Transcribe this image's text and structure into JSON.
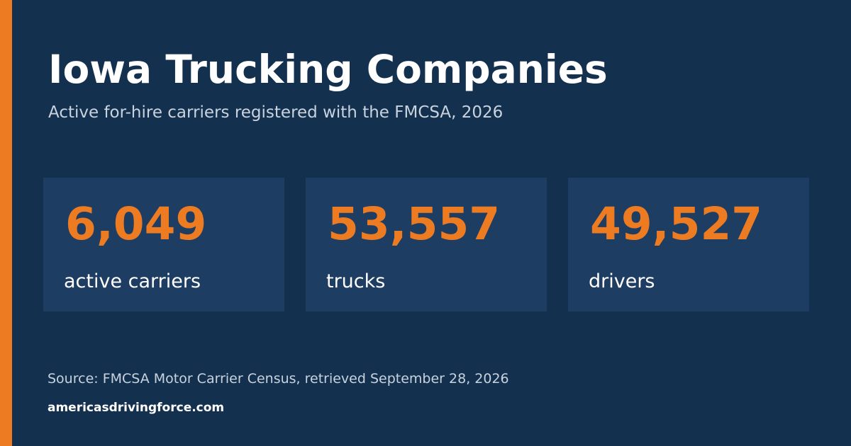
{
  "title": "Iowa Trucking Companies",
  "subtitle": "Active for-hire carriers registered with the FMCSA, 2026",
  "stats": [
    {
      "value": "6,049",
      "label": "active carriers"
    },
    {
      "value": "53,557",
      "label": "trucks"
    },
    {
      "value": "49,527",
      "label": "drivers"
    }
  ],
  "source": "Source: FMCSA Motor Carrier Census, retrieved September 28, 2026",
  "website": "americasdrivingforce.com",
  "colors": {
    "background": "#14304f",
    "card": "#1e3d63",
    "accent": "#ed7b22",
    "text": "#ffffff",
    "muted_text": "#c9d3de"
  }
}
